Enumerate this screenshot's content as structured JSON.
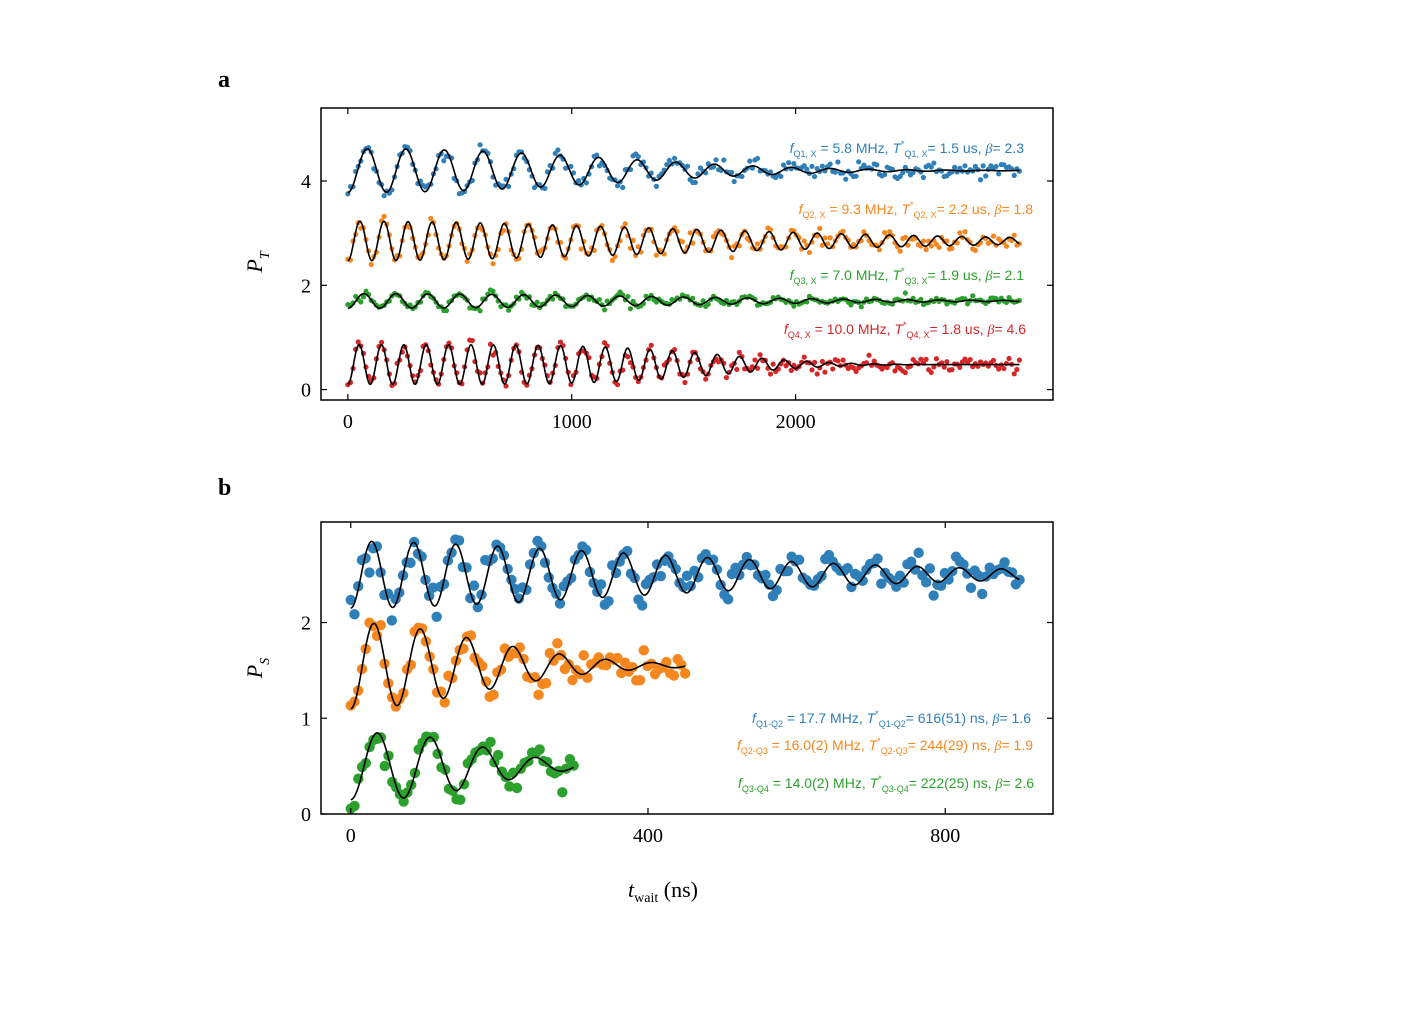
{
  "panel_a_label": "a",
  "panel_b_label": "b",
  "colors": {
    "blue": "#2f7fb8",
    "orange": "#f5871f",
    "green": "#2ca02c",
    "red": "#d62728",
    "fit": "#000000"
  },
  "chart_data": [
    {
      "type": "scatter",
      "panel": "a",
      "ylabel_main": "P",
      "ylabel_sub": "T",
      "xlabel": "",
      "xlim": [
        -120,
        3150
      ],
      "ylim": [
        -0.2,
        5.4
      ],
      "xticks": [
        0,
        1000,
        2000
      ],
      "xtick_labels": [
        "0",
        "1000",
        "2000"
      ],
      "yticks": [
        0,
        2,
        4
      ],
      "ytick_labels": [
        "0",
        "2",
        "4"
      ],
      "grid": false,
      "series": [
        {
          "name": "Q1, X",
          "color": "blue",
          "x_start": 0,
          "x_end": 3000,
          "offset": 4.2,
          "amplitude": 0.42,
          "freq_MHz": 5.8,
          "T2star_ns": 1500,
          "beta": 2.3,
          "annotation": {
            "f_sym": "f",
            "f_sub": "Q1, X",
            "f_val": " = 5.8 MHz, ",
            "t_sym": "T",
            "t_star": "*",
            "t_sub": "Q1, X",
            "t_val": "= 1.5 us, ",
            "b_sym": "β",
            "b_val": "= 2.3"
          }
        },
        {
          "name": "Q2, X",
          "color": "orange",
          "x_start": 0,
          "x_end": 3000,
          "offset": 2.85,
          "amplitude": 0.38,
          "freq_MHz": 9.3,
          "T2star_ns": 2200,
          "beta": 1.8,
          "annotation": {
            "f_sym": "f",
            "f_sub": "Q2, X",
            "f_val": " = 9.3 MHz, ",
            "t_sym": "T",
            "t_star": "*",
            "t_sub": "Q2, X",
            "t_val": "= 2.2 us, ",
            "b_sym": "β",
            "b_val": "= 1.8"
          }
        },
        {
          "name": "Q3, X",
          "color": "green",
          "x_start": 0,
          "x_end": 3000,
          "offset": 1.7,
          "amplitude": 0.14,
          "freq_MHz": 7.0,
          "T2star_ns": 1900,
          "beta": 2.1,
          "annotation": {
            "f_sym": "f",
            "f_sub": "Q3, X",
            "f_val": " = 7.0 MHz, ",
            "t_sym": "T",
            "t_star": "*",
            "t_sub": "Q3, X",
            "t_val": "= 1.9 us, ",
            "b_sym": "β",
            "b_val": "= 2.1"
          }
        },
        {
          "name": "Q4, X",
          "color": "red",
          "x_start": 0,
          "x_end": 3000,
          "offset": 0.48,
          "amplitude": 0.38,
          "freq_MHz": 10.0,
          "T2star_ns": 1800,
          "beta": 4.6,
          "annotation": {
            "f_sym": "f",
            "f_sub": "Q4, X",
            "f_val": " = 10.0 MHz, ",
            "t_sym": "T",
            "t_star": "*",
            "t_sub": "Q4, X",
            "t_val": "= 1.8 us, ",
            "b_sym": "β",
            "b_val": "= 4.6"
          }
        }
      ]
    },
    {
      "type": "scatter",
      "panel": "b",
      "ylabel_main": "P",
      "ylabel_sub": "S",
      "xlabel_main": "t",
      "xlabel_sub": "wait",
      "xlabel_unit": " (ns)",
      "xlim": [
        -40,
        945
      ],
      "ylim": [
        0,
        3.05
      ],
      "xticks": [
        0,
        400,
        800
      ],
      "xtick_labels": [
        "0",
        "400",
        "800"
      ],
      "yticks": [
        0,
        1,
        2
      ],
      "ytick_labels": [
        "0",
        "1",
        "2"
      ],
      "grid": false,
      "series": [
        {
          "name": "Q1-Q2",
          "color": "blue",
          "x_start": 0,
          "x_end": 900,
          "offset": 2.5,
          "amplitude": 0.35,
          "freq_MHz": 17.7,
          "T2star_ns": 616,
          "beta": 1.6,
          "annotation": {
            "f_sym": "f",
            "f_sub": "Q1-Q2",
            "f_val": " = 17.7 MHz, ",
            "t_sym": "T",
            "t_star": "*",
            "t_sub": "Q1-Q2",
            "t_val": "= 616(51) ns, ",
            "b_sym": "β",
            "b_val": "= 1.6"
          }
        },
        {
          "name": "Q2-Q3",
          "color": "orange",
          "x_start": 0,
          "x_end": 450,
          "offset": 1.55,
          "amplitude": 0.45,
          "freq_MHz": 16.0,
          "T2star_ns": 244,
          "beta": 1.9,
          "annotation": {
            "f_sym": "f",
            "f_sub": "Q2-Q3",
            "f_val": " = 16.0(2) MHz, ",
            "t_sym": "T",
            "t_star": "*",
            "t_sub": "Q2-Q3",
            "t_val": "= 244(29) ns,  ",
            "b_sym": "β",
            "b_val": "= 1.9"
          }
        },
        {
          "name": "Q3-Q4",
          "color": "green",
          "x_start": 0,
          "x_end": 300,
          "offset": 0.5,
          "amplitude": 0.35,
          "freq_MHz": 14.0,
          "T2star_ns": 222,
          "beta": 2.6,
          "annotation": {
            "f_sym": "f",
            "f_sub": "Q3-Q4",
            "f_val": " = 14.0(2) MHz, ",
            "t_sym": "T",
            "t_star": "*",
            "t_sub": "Q3-Q4",
            "t_val": "= 222(25) ns, ",
            "b_sym": "β",
            "b_val": "= 2.6"
          }
        }
      ]
    }
  ]
}
